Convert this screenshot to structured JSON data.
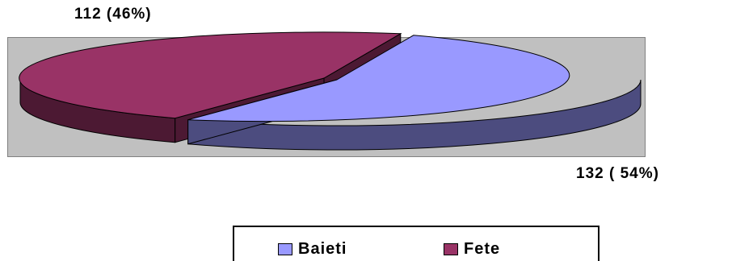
{
  "chart_data": {
    "type": "pie",
    "title": "",
    "slices": [
      {
        "name": "Baieti",
        "value": 132,
        "percent": 54,
        "label": "132 ( 54%)",
        "color": "#9999ff",
        "side_color": "#4c4c7f"
      },
      {
        "name": "Fete",
        "value": 112,
        "percent": 46,
        "label": "112 (46%)",
        "color": "#993366",
        "side_color": "#4c1933"
      }
    ],
    "legend_position": "bottom",
    "plot_background": "#c0c0c0",
    "three_d": true
  }
}
